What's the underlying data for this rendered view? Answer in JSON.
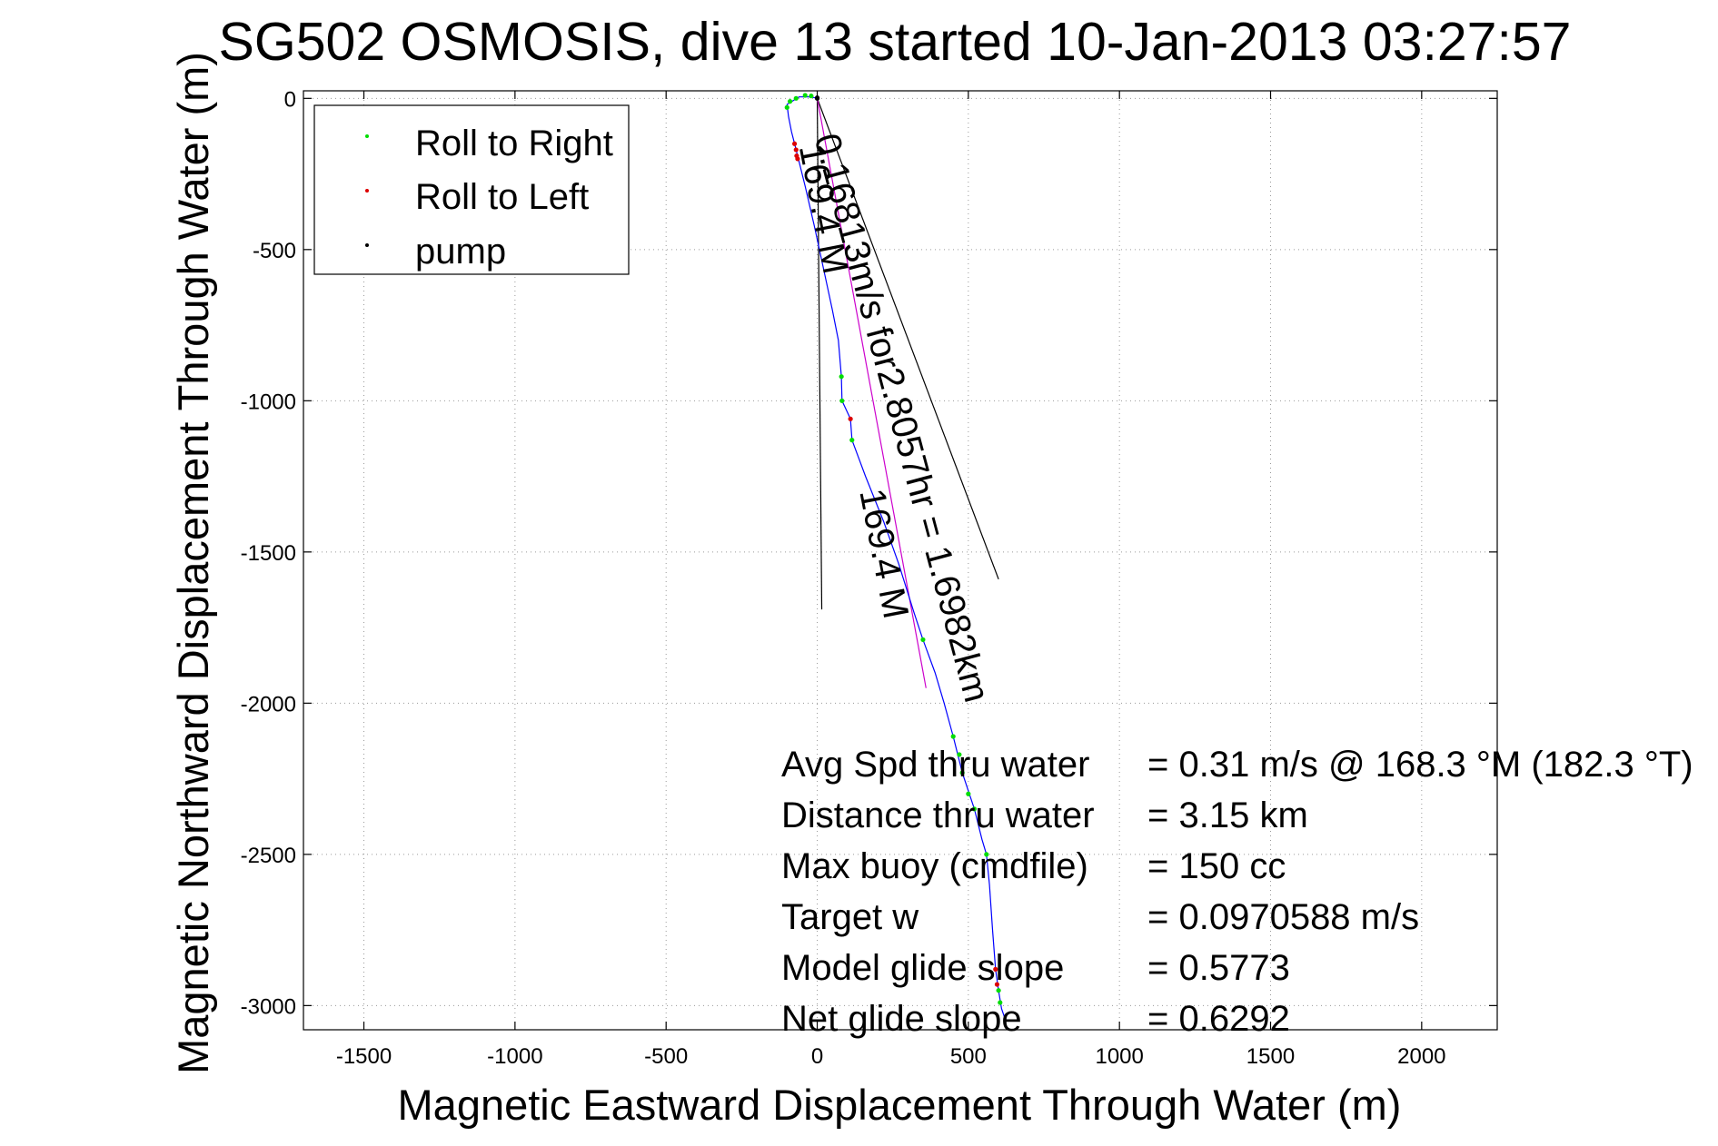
{
  "chart_data": {
    "type": "scatter",
    "title": "SG502 OSMOSIS, dive 13 started 10-Jan-2013 03:27:57",
    "xlabel": "Magnetic Eastward Displacement Through Water (m)",
    "ylabel": "Magnetic Northward Displacement Through Water (m)",
    "xlim": [
      -1700,
      2250
    ],
    "ylim": [
      -3080,
      25
    ],
    "xticks": [
      -1500,
      -1000,
      -500,
      0,
      500,
      1000,
      1500,
      2000
    ],
    "xtick_labels": [
      "-1500",
      "-1000",
      "-500",
      "0",
      "500",
      "1000",
      "1500",
      "2000"
    ],
    "yticks": [
      0,
      -500,
      -1000,
      -1500,
      -2000,
      -2500,
      -3000
    ],
    "ytick_labels": [
      "0",
      "-500",
      "-1000",
      "-1500",
      "-2000",
      "-2500",
      "-3000"
    ],
    "grid": true,
    "legend_position": "top-left",
    "legend": [
      {
        "name": "Roll to Right",
        "color": "#00dd00"
      },
      {
        "name": "Roll to Left",
        "color": "#dd0000"
      },
      {
        "name": "pump",
        "color": "#000000"
      }
    ],
    "series": [
      {
        "name": "Roll to Right",
        "color": "#00dd00",
        "points": [
          [
            -100,
            -30
          ],
          [
            -90,
            -10
          ],
          [
            -70,
            0
          ],
          [
            -40,
            10
          ],
          [
            -20,
            8
          ],
          [
            80,
            -920
          ],
          [
            82,
            -1000
          ],
          [
            115,
            -1130
          ],
          [
            350,
            -1790
          ],
          [
            450,
            -2110
          ],
          [
            470,
            -2170
          ],
          [
            480,
            -2230
          ],
          [
            500,
            -2300
          ],
          [
            520,
            -2350
          ],
          [
            560,
            -2500
          ],
          [
            600,
            -2950
          ],
          [
            605,
            -2990
          ]
        ]
      },
      {
        "name": "Roll to Left",
        "color": "#dd0000",
        "points": [
          [
            -75,
            -150
          ],
          [
            -70,
            -170
          ],
          [
            -68,
            -190
          ],
          [
            -65,
            -200
          ],
          [
            110,
            -1060
          ],
          [
            590,
            -2880
          ],
          [
            595,
            -2930
          ]
        ]
      },
      {
        "name": "pump",
        "color": "#000000",
        "points": [
          [
            0,
            0
          ],
          [
            0,
            2
          ]
        ]
      }
    ],
    "track": {
      "name": "glider track",
      "color": "#0000ff",
      "points": [
        [
          0,
          0
        ],
        [
          -20,
          5
        ],
        [
          -60,
          5
        ],
        [
          -100,
          -20
        ],
        [
          -95,
          -60
        ],
        [
          -85,
          -110
        ],
        [
          -75,
          -150
        ],
        [
          -60,
          -210
        ],
        [
          -40,
          -290
        ],
        [
          -10,
          -420
        ],
        [
          20,
          -560
        ],
        [
          50,
          -700
        ],
        [
          70,
          -800
        ],
        [
          80,
          -920
        ],
        [
          82,
          -1000
        ],
        [
          110,
          -1060
        ],
        [
          115,
          -1130
        ],
        [
          160,
          -1250
        ],
        [
          220,
          -1400
        ],
        [
          270,
          -1540
        ],
        [
          320,
          -1700
        ],
        [
          350,
          -1790
        ],
        [
          390,
          -1900
        ],
        [
          420,
          -2000
        ],
        [
          450,
          -2110
        ],
        [
          480,
          -2230
        ],
        [
          520,
          -2350
        ],
        [
          545,
          -2450
        ],
        [
          560,
          -2500
        ],
        [
          570,
          -2600
        ],
        [
          580,
          -2750
        ],
        [
          590,
          -2880
        ],
        [
          600,
          -2950
        ],
        [
          610,
          -3010
        ],
        [
          620,
          -3040
        ]
      ]
    },
    "reference_lines": [
      {
        "points": [
          [
            0,
            0
          ],
          [
            15,
            -1690
          ]
        ],
        "color": "#000000"
      },
      {
        "points": [
          [
            0,
            0
          ],
          [
            600,
            -1590
          ]
        ],
        "color": "#000000"
      },
      {
        "points": [
          [
            0,
            0
          ],
          [
            360,
            -1950
          ]
        ],
        "color": "#cc00cc"
      }
    ],
    "annotations": [
      {
        "text": "169.4 M",
        "at": [
          -60,
          -160
        ],
        "angle": 79
      },
      {
        "text": "0.16813m/s for2.8057hr = 1.6982km",
        "at": [
          -10,
          -130
        ],
        "angle": 75
      },
      {
        "text": "169.4 M",
        "at": [
          140,
          -1300
        ],
        "angle": 79
      }
    ],
    "stats": [
      {
        "label": "Avg Spd thru water",
        "value": "=  0.31 m/s @ 168.3 °M (182.3 °T)"
      },
      {
        "label": "Distance thru water",
        "value": "=  3.15 km"
      },
      {
        "label": "Max buoy (cmdfile)",
        "value": "= 150 cc"
      },
      {
        "label": "Target w",
        "value": "= 0.0970588 m/s"
      },
      {
        "label": "Model glide slope",
        "value": "= 0.5773"
      },
      {
        "label": "Net glide slope",
        "value": "= 0.6292"
      }
    ]
  }
}
